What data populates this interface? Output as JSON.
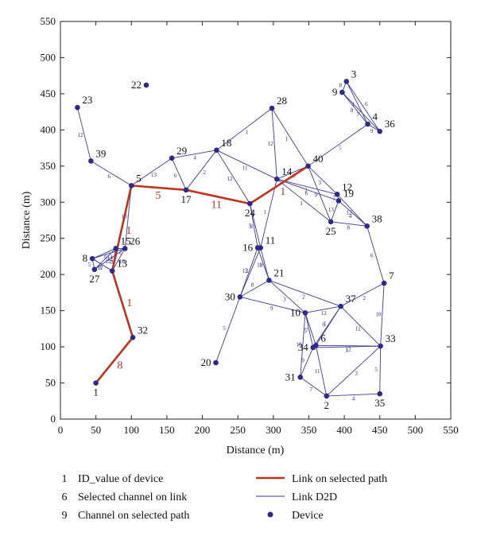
{
  "chart_data": {
    "type": "scatter",
    "xlabel": "Distance (m)",
    "ylabel": "Distance (m)",
    "xlim": [
      0,
      550
    ],
    "ylim": [
      0,
      550
    ],
    "xticks": [
      0,
      50,
      100,
      150,
      200,
      250,
      300,
      350,
      400,
      450,
      500,
      550
    ],
    "yticks": [
      0,
      50,
      100,
      150,
      200,
      250,
      300,
      350,
      400,
      450,
      500,
      550
    ],
    "grid": false,
    "colors": {
      "device": "#2e2a8c",
      "d2d_link": "#3b3b9a",
      "selected_path": "#c0321e",
      "channel_text": "#2a2a8c",
      "path_channel_text": "#c0321e"
    },
    "devices": [
      {
        "id": "1",
        "x": 50,
        "y": 50
      },
      {
        "id": "2",
        "x": 375,
        "y": 32
      },
      {
        "id": "3",
        "x": 403,
        "y": 467
      },
      {
        "id": "4",
        "x": 433,
        "y": 408
      },
      {
        "id": "5",
        "x": 100,
        "y": 323
      },
      {
        "id": "6",
        "x": 360,
        "y": 102
      },
      {
        "id": "7",
        "x": 456,
        "y": 188
      },
      {
        "id": "8",
        "x": 45,
        "y": 222
      },
      {
        "id": "9",
        "x": 397,
        "y": 452
      },
      {
        "id": "10",
        "x": 345,
        "y": 147
      },
      {
        "id": "11",
        "x": 282,
        "y": 237
      },
      {
        "id": "12",
        "x": 390,
        "y": 311
      },
      {
        "id": "13",
        "x": 73,
        "y": 205
      },
      {
        "id": "14",
        "x": 305,
        "y": 332
      },
      {
        "id": "15",
        "x": 78,
        "y": 236
      },
      {
        "id": "16",
        "x": 278,
        "y": 237
      },
      {
        "id": "17",
        "x": 177,
        "y": 317
      },
      {
        "id": "18",
        "x": 220,
        "y": 372
      },
      {
        "id": "19",
        "x": 392,
        "y": 302
      },
      {
        "id": "20",
        "x": 219,
        "y": 78
      },
      {
        "id": "21",
        "x": 294,
        "y": 192
      },
      {
        "id": "22",
        "x": 121,
        "y": 462
      },
      {
        "id": "23",
        "x": 24,
        "y": 431
      },
      {
        "id": "24",
        "x": 267,
        "y": 298
      },
      {
        "id": "25",
        "x": 381,
        "y": 273
      },
      {
        "id": "26",
        "x": 91,
        "y": 236
      },
      {
        "id": "27",
        "x": 48,
        "y": 207
      },
      {
        "id": "28",
        "x": 298,
        "y": 430
      },
      {
        "id": "29",
        "x": 157,
        "y": 361
      },
      {
        "id": "30",
        "x": 253,
        "y": 169
      },
      {
        "id": "31",
        "x": 338,
        "y": 58
      },
      {
        "id": "32",
        "x": 102,
        "y": 113
      },
      {
        "id": "33",
        "x": 451,
        "y": 101
      },
      {
        "id": "34",
        "x": 356,
        "y": 99
      },
      {
        "id": "35",
        "x": 450,
        "y": 35
      },
      {
        "id": "36",
        "x": 450,
        "y": 398
      },
      {
        "id": "37",
        "x": 395,
        "y": 156
      },
      {
        "id": "38",
        "x": 432,
        "y": 267
      },
      {
        "id": "39",
        "x": 43,
        "y": 357
      },
      {
        "id": "40",
        "x": 349,
        "y": 350
      }
    ],
    "d2d_links": [
      {
        "from": "23",
        "to": "39",
        "channel": "12"
      },
      {
        "from": "39",
        "to": "5",
        "channel": "6"
      },
      {
        "from": "5",
        "to": "29",
        "channel": "13"
      },
      {
        "from": "29",
        "to": "18",
        "channel": "4"
      },
      {
        "from": "29",
        "to": "17",
        "channel": "6"
      },
      {
        "from": "17",
        "to": "18",
        "channel": "2"
      },
      {
        "from": "18",
        "to": "28",
        "channel": "1"
      },
      {
        "from": "18",
        "to": "14",
        "channel": "11"
      },
      {
        "from": "18",
        "to": "24",
        "channel": "12"
      },
      {
        "from": "28",
        "to": "14",
        "channel": "12"
      },
      {
        "from": "28",
        "to": "40",
        "channel": "1"
      },
      {
        "from": "14",
        "to": "40",
        "channel": "8"
      },
      {
        "from": "40",
        "to": "4",
        "channel": "5"
      },
      {
        "from": "4",
        "to": "36",
        "channel": "9"
      },
      {
        "from": "36",
        "to": "3",
        "channel": "6"
      },
      {
        "from": "3",
        "to": "9",
        "channel": "8"
      },
      {
        "from": "9",
        "to": "4",
        "channel": "8"
      },
      {
        "from": "3",
        "to": "4",
        "channel": "1"
      },
      {
        "from": "9",
        "to": "36",
        "channel": "7"
      },
      {
        "from": "14",
        "to": "12",
        "channel": "2"
      },
      {
        "from": "14",
        "to": "19",
        "channel": "6"
      },
      {
        "from": "14",
        "to": "25",
        "channel": "1"
      },
      {
        "from": "40",
        "to": "12",
        "channel": "3"
      },
      {
        "from": "40",
        "to": "25",
        "channel": "9"
      },
      {
        "from": "12",
        "to": "19",
        "channel": "7"
      },
      {
        "from": "19",
        "to": "25",
        "channel": "13"
      },
      {
        "from": "12",
        "to": "38",
        "channel": "12"
      },
      {
        "from": "25",
        "to": "38",
        "channel": "8"
      },
      {
        "from": "19",
        "to": "38",
        "channel": "4"
      },
      {
        "from": "14",
        "to": "11",
        "channel": "1"
      },
      {
        "from": "24",
        "to": "16",
        "channel": "5"
      },
      {
        "from": "24",
        "to": "11",
        "channel": "8"
      },
      {
        "from": "11",
        "to": "21",
        "channel": "9"
      },
      {
        "from": "16",
        "to": "21",
        "channel": "10"
      },
      {
        "from": "16",
        "to": "30",
        "channel": "13"
      },
      {
        "from": "11",
        "to": "30",
        "channel": "2"
      },
      {
        "from": "21",
        "to": "30",
        "channel": "8"
      },
      {
        "from": "30",
        "to": "20",
        "channel": "5"
      },
      {
        "from": "30",
        "to": "10",
        "channel": "9"
      },
      {
        "from": "21",
        "to": "10",
        "channel": "3"
      },
      {
        "from": "21",
        "to": "37",
        "channel": "2"
      },
      {
        "from": "10",
        "to": "37",
        "channel": "12"
      },
      {
        "from": "37",
        "to": "7",
        "channel": "2"
      },
      {
        "from": "38",
        "to": "7",
        "channel": "6"
      },
      {
        "from": "7",
        "to": "33",
        "channel": "10"
      },
      {
        "from": "37",
        "to": "33",
        "channel": "12"
      },
      {
        "from": "37",
        "to": "6",
        "channel": "1"
      },
      {
        "from": "37",
        "to": "34",
        "channel": "6"
      },
      {
        "from": "10",
        "to": "6",
        "channel": "7"
      },
      {
        "from": "10",
        "to": "34",
        "channel": "5"
      },
      {
        "from": "10",
        "to": "31",
        "channel": "10"
      },
      {
        "from": "6",
        "to": "33",
        "channel": "12"
      },
      {
        "from": "34",
        "to": "33",
        "channel": "1"
      },
      {
        "from": "33",
        "to": "35",
        "channel": "5"
      },
      {
        "from": "6",
        "to": "2",
        "channel": "11"
      },
      {
        "from": "34",
        "to": "31",
        "channel": "9"
      },
      {
        "from": "31",
        "to": "2",
        "channel": "7"
      },
      {
        "from": "2",
        "to": "35",
        "channel": "4"
      },
      {
        "from": "2",
        "to": "33",
        "channel": "3"
      },
      {
        "from": "8",
        "to": "15",
        "channel": "6"
      },
      {
        "from": "8",
        "to": "26",
        "channel": "13"
      },
      {
        "from": "8",
        "to": "27",
        "channel": "5"
      },
      {
        "from": "8",
        "to": "13",
        "channel": "3"
      },
      {
        "from": "15",
        "to": "26",
        "channel": "2"
      },
      {
        "from": "27",
        "to": "26",
        "channel": "8"
      },
      {
        "from": "27",
        "to": "15",
        "channel": "12"
      },
      {
        "from": "13",
        "to": "26",
        "channel": "10"
      },
      {
        "from": "15",
        "to": "13",
        "channel": "12"
      },
      {
        "from": "5",
        "to": "26",
        "channel": "10"
      },
      {
        "from": "8",
        "to": "13",
        "channel": "12"
      }
    ],
    "selected_path": [
      {
        "from": "1",
        "to": "32",
        "channel": "8"
      },
      {
        "from": "32",
        "to": "13",
        "channel": "1"
      },
      {
        "from": "13",
        "to": "5",
        "channel": "1"
      },
      {
        "from": "5",
        "to": "17",
        "channel": "5"
      },
      {
        "from": "17",
        "to": "24",
        "channel": "11"
      },
      {
        "from": "24",
        "to": "40",
        "channel": "1"
      }
    ],
    "legend": [
      {
        "symbol": "1",
        "text": "ID_value of device"
      },
      {
        "symbol": "6",
        "text": "Selected channel on link"
      },
      {
        "symbol": "9",
        "text": "Channel on selected path"
      },
      {
        "symbol": "",
        "text": "Link on selected path"
      },
      {
        "symbol": "",
        "text": "Link D2D"
      },
      {
        "symbol": "",
        "text": "Device"
      }
    ]
  }
}
